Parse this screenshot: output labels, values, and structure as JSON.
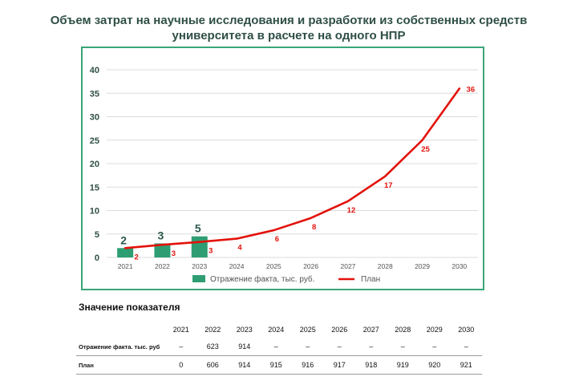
{
  "title": "Объем затрат на научные исследования и разработки из собственных средств университета в расчете на одного НПР",
  "colors": {
    "bar": "#2e9e72",
    "line": "#e3120b",
    "frame": "#3aa57a",
    "title": "#2f4f46",
    "axis_text": "#2f4f46"
  },
  "chart_data": {
    "type": "bar",
    "categories": [
      "2021",
      "2022",
      "2023",
      "2024",
      "2025",
      "2026",
      "2027",
      "2028",
      "2029",
      "2030"
    ],
    "ylim": [
      0,
      40
    ],
    "yticks": [
      0,
      5,
      10,
      15,
      20,
      25,
      30,
      35,
      40
    ],
    "grid": true,
    "legend_position": "bottom",
    "series": [
      {
        "name": "Отражение факта, тыс. руб.",
        "type": "bar",
        "color": "#2e9e72",
        "values": [
          2,
          3,
          4.5,
          null,
          null,
          null,
          null,
          null,
          null,
          null
        ],
        "labels": [
          "2",
          "3",
          "5",
          "",
          "",
          "",
          "",
          "",
          "",
          ""
        ]
      },
      {
        "name": "План",
        "type": "line",
        "color": "#e3120b",
        "values": [
          2,
          2.7,
          3.3,
          4,
          5.8,
          8.4,
          12,
          17.3,
          25,
          36
        ],
        "labels": [
          "2",
          "3",
          "3",
          "4",
          "6",
          "8",
          "12",
          "17",
          "25",
          "36"
        ]
      }
    ]
  },
  "table": {
    "title": "Значение показателя",
    "years": [
      "2021",
      "2022",
      "2023",
      "2024",
      "2025",
      "2026",
      "2027",
      "2028",
      "2029",
      "2030"
    ],
    "rows": [
      {
        "label": "Отражение факта. тыс. руб",
        "values": [
          "–",
          "623",
          "914",
          "–",
          "–",
          "–",
          "–",
          "–",
          "–",
          "–"
        ]
      },
      {
        "label": "План",
        "values": [
          "0",
          "606",
          "914",
          "915",
          "916",
          "917",
          "918",
          "919",
          "920",
          "921"
        ]
      }
    ]
  }
}
